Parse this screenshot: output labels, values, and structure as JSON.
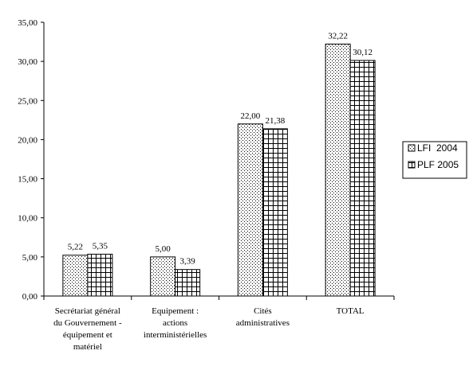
{
  "chart_data": {
    "type": "bar",
    "categories": [
      [
        "Secrétariat général",
        "du Gouvernement -",
        "équipement et",
        "matériel"
      ],
      [
        "Equipement :",
        "actions",
        "interministérielles"
      ],
      [
        "Cités",
        "administratives"
      ],
      [
        "TOTAL"
      ]
    ],
    "series": [
      {
        "name": "LFI  2004",
        "values": [
          5.22,
          5.0,
          22.0,
          32.22
        ],
        "labels": [
          "5,22",
          "5,00",
          "22,00",
          "32,22"
        ],
        "pattern": "dots"
      },
      {
        "name": "PLF 2005",
        "values": [
          5.35,
          3.39,
          21.38,
          30.12
        ],
        "labels": [
          "5,35",
          "3,39",
          "21,38",
          "30,12"
        ],
        "pattern": "grid"
      }
    ],
    "y_ticks": [
      0,
      5,
      10,
      15,
      20,
      25,
      30,
      35
    ],
    "y_tick_labels": [
      "0,00",
      "5,00",
      "10,00",
      "15,00",
      "20,00",
      "25,00",
      "30,00",
      "35,00"
    ],
    "ylim": [
      0,
      35
    ],
    "grid": false,
    "legend_position": "right",
    "title": "",
    "xlabel": "",
    "ylabel": ""
  }
}
